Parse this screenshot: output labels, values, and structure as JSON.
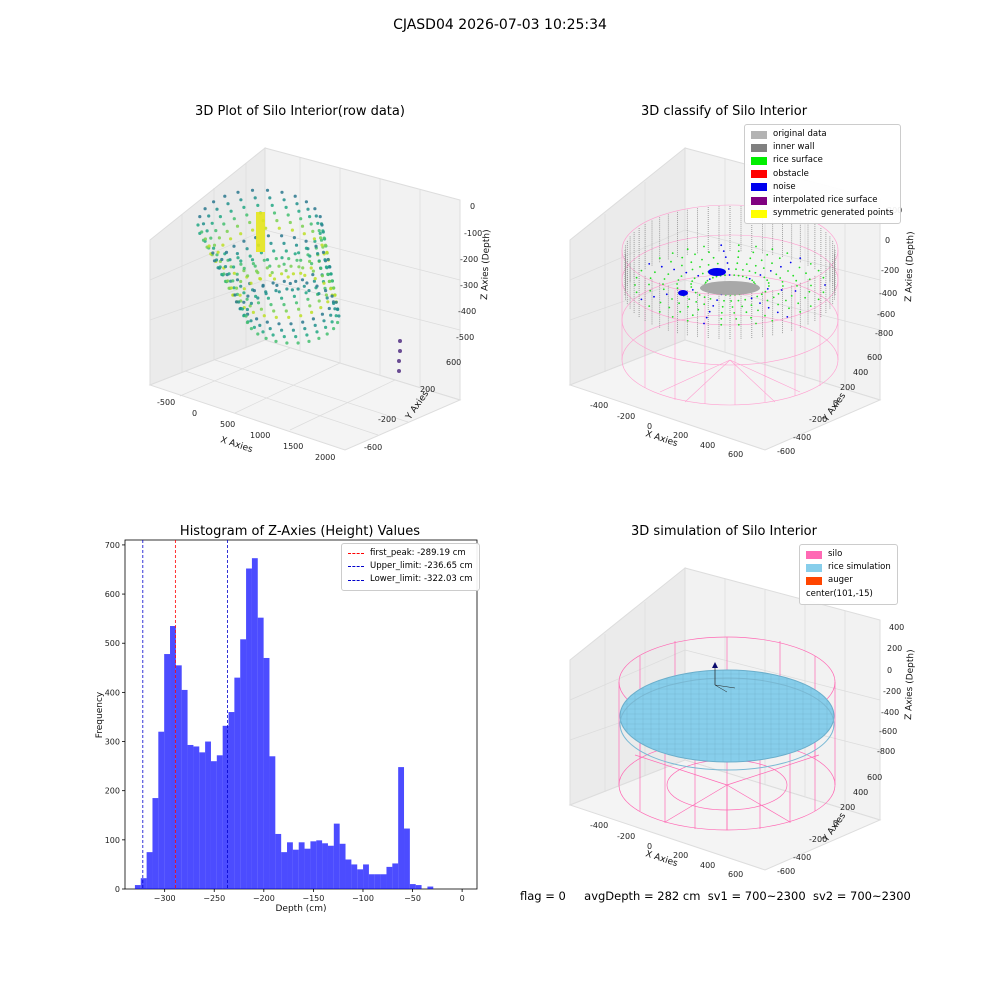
{
  "suptitle": "CJASD04 2026-07-03 10:25:34",
  "panels": {
    "raw": {
      "title": "3D Plot of Silo Interior(row data)",
      "xlabel": "X Axies",
      "ylabel": "Y Axies",
      "zlabel": "Z Axies (Depth)",
      "xticks": [
        "-500",
        "0",
        "500",
        "1000",
        "1500",
        "2000"
      ],
      "yticks": [
        "-600",
        "-400",
        "-200",
        "0",
        "200",
        "400",
        "600"
      ],
      "zticks": [
        "0",
        "-100",
        "-200",
        "-300",
        "-400",
        "-500"
      ]
    },
    "classify": {
      "title": "3D classify of Silo Interior",
      "xlabel": "X Axies",
      "ylabel": "Y Axies",
      "zlabel": "Z Axies (Depth)",
      "xticks": [
        "-400",
        "-200",
        "0",
        "200",
        "400",
        "600"
      ],
      "yticks": [
        "-600",
        "-400",
        "-200",
        "0",
        "200",
        "400",
        "600"
      ],
      "zticks": [
        "200",
        "0",
        "-200",
        "-400",
        "-600",
        "-800"
      ],
      "legend": [
        {
          "label": "original data",
          "color": "#b3b3b3"
        },
        {
          "label": "inner wall",
          "color": "#808080"
        },
        {
          "label": "rice surface",
          "color": "#00ee00"
        },
        {
          "label": "obstacle",
          "color": "#ff0000"
        },
        {
          "label": "noise",
          "color": "#0000ee"
        },
        {
          "label": "interpolated rice surface",
          "color": "#800080"
        },
        {
          "label": "symmetric generated points",
          "color": "#ffff00"
        }
      ]
    },
    "simulation": {
      "title": "3D simulation of Silo Interior",
      "xlabel": "X Axies",
      "ylabel": "Y Axies",
      "zlabel": "Z Axies (Depth)",
      "xticks": [
        "-400",
        "-200",
        "0",
        "200",
        "400",
        "600"
      ],
      "yticks": [
        "-600",
        "-400",
        "-200",
        "0",
        "200",
        "400",
        "600"
      ],
      "zticks": [
        "400",
        "200",
        "0",
        "-200",
        "-400",
        "-600",
        "-800"
      ],
      "legend": [
        {
          "label": "silo",
          "color": "#ff69b4"
        },
        {
          "label": "rice simulation",
          "color": "#87ceeb"
        },
        {
          "label": "auger",
          "color": "#ff4500"
        },
        {
          "label": "center(101,-15)",
          "color": ""
        }
      ]
    }
  },
  "status": {
    "flag": "flag = 0",
    "avg_depth": "avgDepth = 282 cm",
    "sv1": "sv1 = 700~2300",
    "sv2": "sv2 = 700~2300"
  },
  "chart_data": {
    "type": "bar",
    "title": "Histogram of Z-Axies (Height) Values",
    "xlabel": "Depth (cm)",
    "ylabel": "Frequency",
    "xlim": [
      -340,
      15
    ],
    "ylim": [
      0,
      710
    ],
    "xticks": [
      -300,
      -250,
      -200,
      -150,
      -100,
      -50,
      0
    ],
    "yticks": [
      0,
      100,
      200,
      300,
      400,
      500,
      600,
      700
    ],
    "bin_edges_start": -330,
    "bin_width": 5.9,
    "values": [
      8,
      22,
      75,
      185,
      320,
      478,
      535,
      455,
      405,
      293,
      290,
      278,
      300,
      260,
      272,
      332,
      360,
      430,
      508,
      652,
      673,
      552,
      470,
      270,
      112,
      75,
      95,
      80,
      95,
      82,
      97,
      99,
      93,
      88,
      133,
      92,
      60,
      50,
      40,
      50,
      30,
      30,
      30,
      45,
      52,
      248,
      123,
      10,
      8,
      0,
      5
    ],
    "bar_color": "#0000ff",
    "bar_alpha": 0.7,
    "vlines": [
      {
        "label": "first_peak: -289.19 cm",
        "value": -289.19,
        "color": "#ff0000"
      },
      {
        "label": "Upper_limit: -236.65 cm",
        "value": -236.65,
        "color": "#0000cc"
      },
      {
        "label": "Lower_limit: -322.03 cm",
        "value": -322.03,
        "color": "#0000cc"
      }
    ],
    "legend_position": "upper right"
  }
}
